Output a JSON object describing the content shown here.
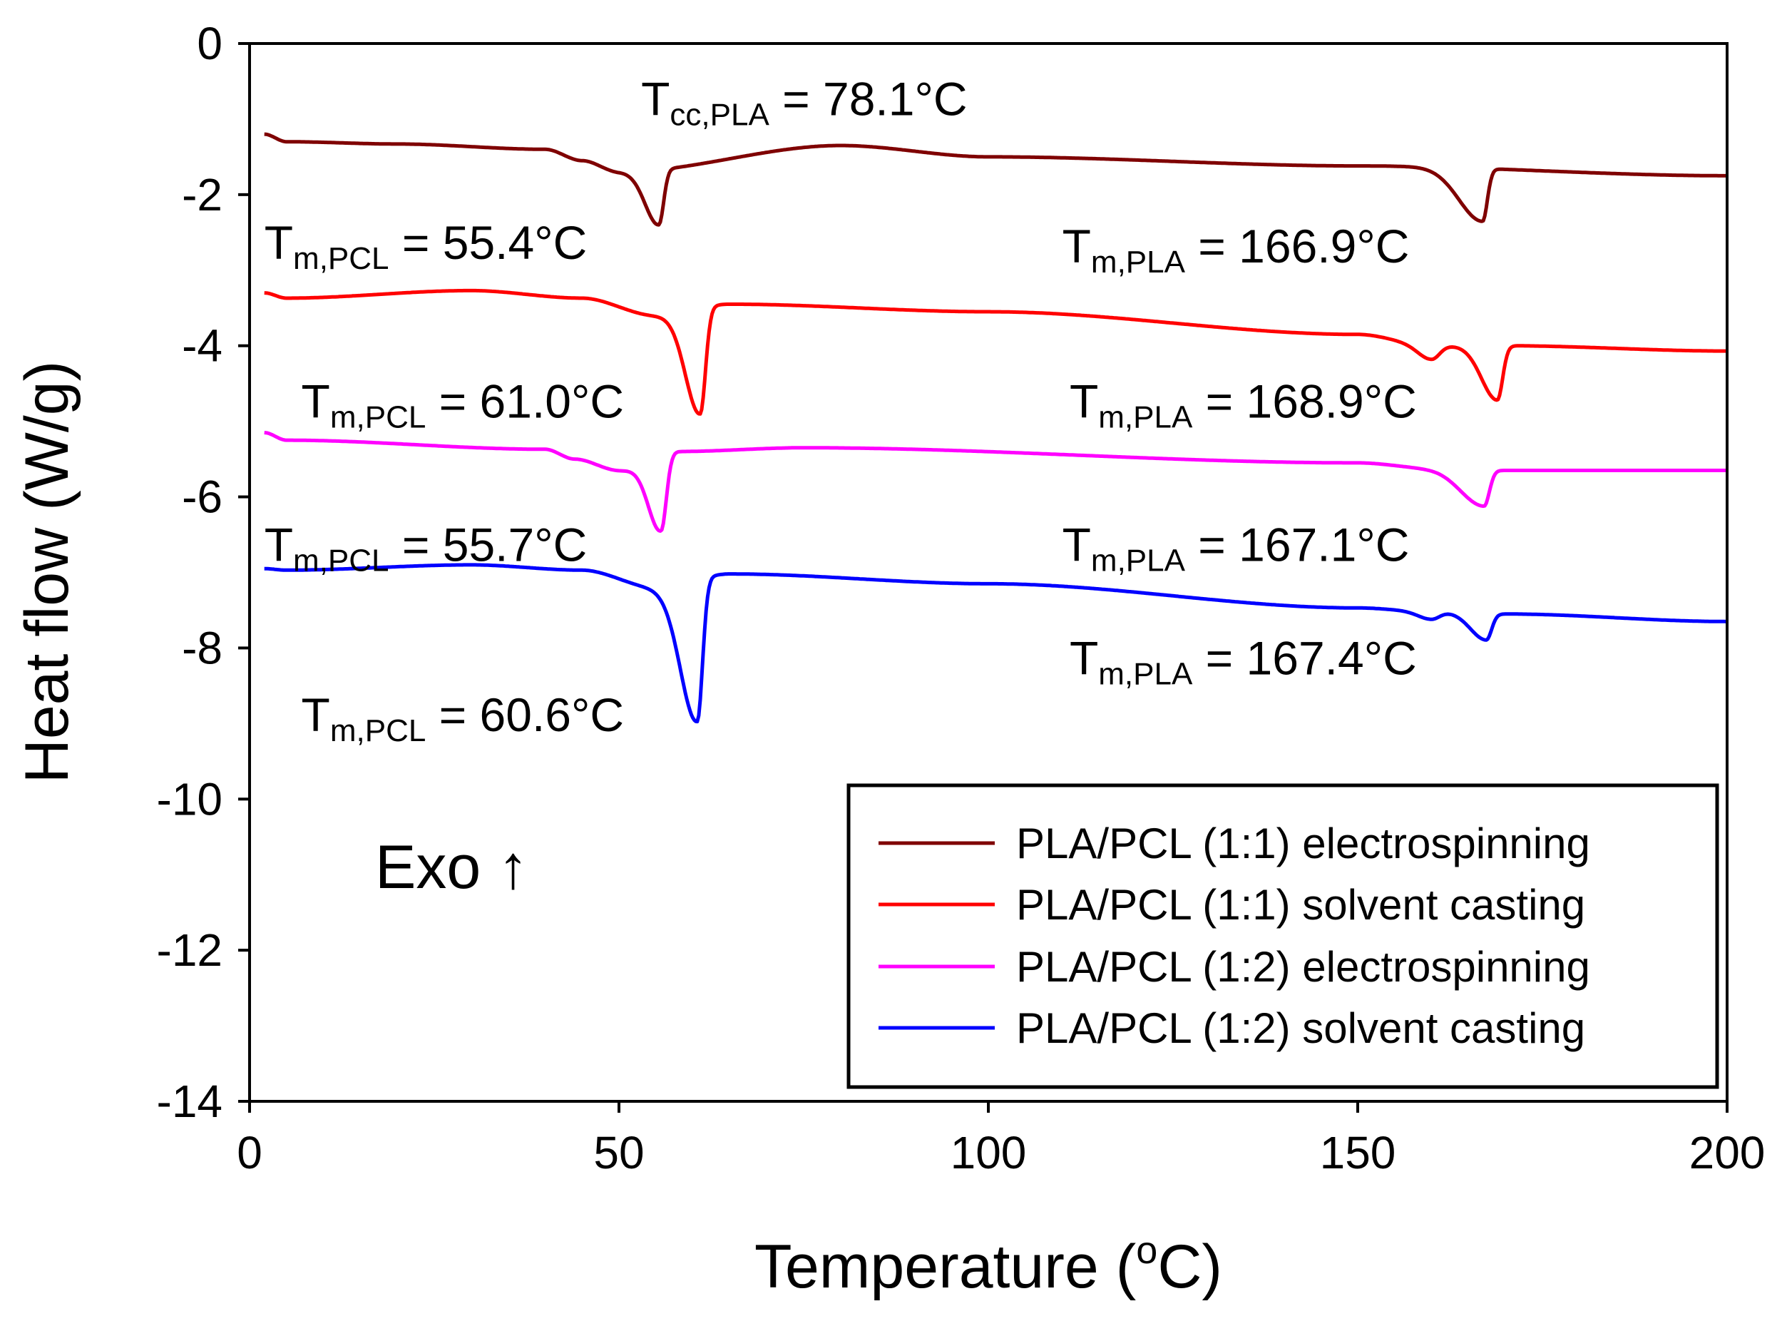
{
  "chart_data": {
    "type": "line",
    "xlabel_main": "Temperature (",
    "xlabel_sup": "o",
    "xlabel_end": "C)",
    "ylabel": "Heat flow (W/g)",
    "xlim": [
      0,
      200
    ],
    "ylim": [
      -14,
      0
    ],
    "x_ticks": [
      0,
      50,
      100,
      150,
      200
    ],
    "y_ticks": [
      0,
      -2,
      -4,
      -6,
      -8,
      -10,
      -12,
      -14
    ],
    "series": [
      {
        "name": "PLA/PCL (1:1) electrospinning",
        "color": "#7f0000",
        "baseline": [
          [
            2,
            -1.2
          ],
          [
            5,
            -1.3
          ],
          [
            20,
            -1.33
          ],
          [
            40,
            -1.4
          ],
          [
            45,
            -1.55
          ],
          [
            50,
            -1.7
          ],
          [
            80,
            -1.35
          ],
          [
            100,
            -1.5
          ],
          [
            150,
            -1.62
          ],
          [
            200,
            -1.75
          ]
        ],
        "peaks": [
          {
            "center": 55.4,
            "depth": 0.73,
            "left_width": 2.6,
            "right_width": 0.9
          },
          {
            "center": 166.9,
            "depth": 0.7,
            "left_width": 4.5,
            "right_width": 0.9
          }
        ],
        "step_after_peak": [
          {
            "from": 56.5,
            "to": 62,
            "delta": 0.3
          },
          {
            "from": 168,
            "to": 170,
            "delta": 0.05
          }
        ]
      },
      {
        "name": "PLA/PCL (1:1) solvent casting",
        "color": "#ff0000",
        "baseline": [
          [
            2,
            -3.3
          ],
          [
            5,
            -3.37
          ],
          [
            30,
            -3.27
          ],
          [
            45,
            -3.37
          ],
          [
            55,
            -3.6
          ],
          [
            65,
            -3.45
          ],
          [
            100,
            -3.55
          ],
          [
            150,
            -3.85
          ],
          [
            160,
            -4.0
          ],
          [
            170,
            -4.0
          ],
          [
            200,
            -4.07
          ]
        ],
        "peaks": [
          {
            "center": 61.0,
            "depth": 1.4,
            "left_width": 2.8,
            "right_width": 1.0
          },
          {
            "center": 160.0,
            "depth": 0.18,
            "left_width": 2.5,
            "right_width": 1.5
          },
          {
            "center": 168.9,
            "depth": 0.72,
            "left_width": 3.0,
            "right_width": 1.0
          }
        ]
      },
      {
        "name": "PLA/PCL (1:2) electrospinning",
        "color": "#ff00ff",
        "baseline": [
          [
            2,
            -5.15
          ],
          [
            5,
            -5.25
          ],
          [
            40,
            -5.37
          ],
          [
            44,
            -5.5
          ],
          [
            50,
            -5.65
          ],
          [
            58,
            -5.4
          ],
          [
            75,
            -5.35
          ],
          [
            150,
            -5.55
          ],
          [
            160,
            -5.62
          ],
          [
            170,
            -5.65
          ],
          [
            200,
            -5.65
          ]
        ],
        "peaks": [
          {
            "center": 55.7,
            "depth": 1.0,
            "left_width": 2.4,
            "right_width": 1.0
          },
          {
            "center": 167.1,
            "depth": 0.48,
            "left_width": 4.5,
            "right_width": 1.0
          }
        ]
      },
      {
        "name": "PLA/PCL (1:2) solvent casting",
        "color": "#0000ff",
        "baseline": [
          [
            2,
            -6.95
          ],
          [
            5,
            -6.97
          ],
          [
            30,
            -6.9
          ],
          [
            45,
            -6.97
          ],
          [
            55,
            -7.2
          ],
          [
            65,
            -7.02
          ],
          [
            100,
            -7.15
          ],
          [
            150,
            -7.47
          ],
          [
            160,
            -7.52
          ],
          [
            170,
            -7.55
          ],
          [
            200,
            -7.65
          ]
        ],
        "peaks": [
          {
            "center": 60.6,
            "depth": 1.88,
            "left_width": 3.2,
            "right_width": 1.0
          },
          {
            "center": 160.0,
            "depth": 0.1,
            "left_width": 2.5,
            "right_width": 1.5
          },
          {
            "center": 167.4,
            "depth": 0.35,
            "left_width": 3.0,
            "right_width": 1.0
          }
        ]
      }
    ],
    "annotations": [
      {
        "id": "ann-tcc-pla",
        "main": "T",
        "sub": "cc,PLA",
        "value": " = 78.1°C",
        "x": 53,
        "y": -0.95
      },
      {
        "id": "ann-tm-pcl-1",
        "main": "T",
        "sub": "m,PCL",
        "value": " = 55.4°C",
        "x": 2,
        "y": -2.85
      },
      {
        "id": "ann-tm-pla-1",
        "main": "T",
        "sub": "m,PLA",
        "value": " = 166.9°C",
        "x": 110,
        "y": -2.9
      },
      {
        "id": "ann-tm-pcl-2",
        "main": "T",
        "sub": "m,PCL",
        "value": " = 61.0°C",
        "x": 7,
        "y": -4.95
      },
      {
        "id": "ann-tm-pla-2",
        "main": "T",
        "sub": "m,PLA",
        "value": " = 168.9°C",
        "x": 111,
        "y": -4.95
      },
      {
        "id": "ann-tm-pcl-3",
        "main": "T",
        "sub": "m,PCL",
        "value": " = 55.7°C",
        "x": 2,
        "y": -6.85
      },
      {
        "id": "ann-tm-pla-3",
        "main": "T",
        "sub": "m,PLA",
        "value": " = 167.1°C",
        "x": 110,
        "y": -6.85
      },
      {
        "id": "ann-tm-pcl-4",
        "main": "T",
        "sub": "m,PCL",
        "value": " = 60.6°C",
        "x": 7,
        "y": -9.1
      },
      {
        "id": "ann-tm-pla-4",
        "main": "T",
        "sub": "m,PLA",
        "value": " = 167.4°C",
        "x": 111,
        "y": -8.35
      }
    ],
    "exo_label": "Exo ↑",
    "legend_position": "bottom-right"
  }
}
